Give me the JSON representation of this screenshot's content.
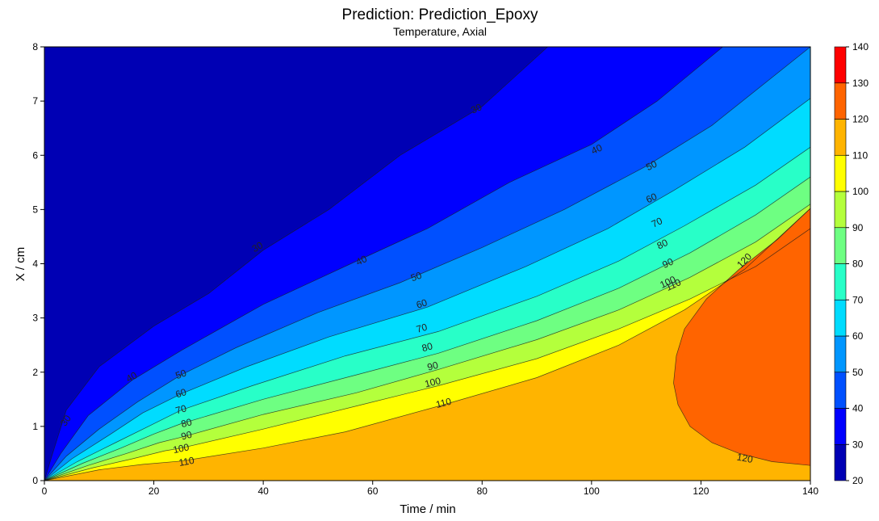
{
  "chart_data": {
    "type": "contour",
    "title": "Prediction: Prediction_Epoxy",
    "subtitle": "Temperature, Axial",
    "xlabel": "Time / min",
    "ylabel": "X / cm",
    "xlim": [
      0,
      140
    ],
    "ylim": [
      0,
      8
    ],
    "x_ticks": [
      "0",
      "20",
      "40",
      "60",
      "80",
      "100",
      "120",
      "140"
    ],
    "y_ticks": [
      "0",
      "1",
      "2",
      "3",
      "4",
      "5",
      "6",
      "7",
      "8"
    ],
    "colorbar": {
      "levels": [
        20,
        30,
        40,
        50,
        60,
        70,
        80,
        90,
        100,
        110,
        120,
        130,
        140
      ],
      "labels": [
        "20",
        "30",
        "40",
        "50",
        "60",
        "70",
        "80",
        "90",
        "100",
        "110",
        "120",
        "130",
        "140"
      ],
      "colors": [
        "#0000b4",
        "#0000ff",
        "#0050ff",
        "#0096ff",
        "#00dcff",
        "#28ffc8",
        "#6eff82",
        "#b4ff3c",
        "#ffff00",
        "#ffb400",
        "#ff6400",
        "#ff0000"
      ]
    },
    "contours": [
      {
        "level": 30,
        "points": [
          [
            0,
            0
          ],
          [
            1.5,
            0.5
          ],
          [
            4,
            1.3
          ],
          [
            10,
            2.1
          ],
          [
            20,
            2.85
          ],
          [
            30,
            3.45
          ],
          [
            40,
            4.25
          ],
          [
            52,
            5.0
          ],
          [
            65,
            6.0
          ],
          [
            80,
            6.9
          ],
          [
            92,
            8.0
          ]
        ]
      },
      {
        "level": 40,
        "points": [
          [
            0,
            0
          ],
          [
            3,
            0.5
          ],
          [
            8,
            1.2
          ],
          [
            16,
            1.85
          ],
          [
            25,
            2.4
          ],
          [
            40,
            3.25
          ],
          [
            56,
            4.0
          ],
          [
            70,
            4.65
          ],
          [
            85,
            5.5
          ],
          [
            100,
            6.2
          ],
          [
            112,
            7.0
          ],
          [
            124,
            8.0
          ]
        ]
      },
      {
        "level": 50,
        "points": [
          [
            0,
            0
          ],
          [
            4,
            0.45
          ],
          [
            10,
            0.95
          ],
          [
            17,
            1.45
          ],
          [
            25,
            1.95
          ],
          [
            35,
            2.45
          ],
          [
            50,
            3.1
          ],
          [
            65,
            3.65
          ],
          [
            80,
            4.3
          ],
          [
            95,
            5.0
          ],
          [
            110,
            5.8
          ],
          [
            122,
            6.55
          ],
          [
            140,
            8.0
          ]
        ]
      },
      {
        "level": 60,
        "points": [
          [
            0,
            0
          ],
          [
            5,
            0.4
          ],
          [
            12,
            0.85
          ],
          [
            18,
            1.25
          ],
          [
            25,
            1.6
          ],
          [
            37,
            2.1
          ],
          [
            52,
            2.65
          ],
          [
            70,
            3.2
          ],
          [
            88,
            3.95
          ],
          [
            103,
            4.65
          ],
          [
            115,
            5.35
          ],
          [
            128,
            6.15
          ],
          [
            140,
            7.05
          ]
        ]
      },
      {
        "level": 70,
        "points": [
          [
            0,
            0
          ],
          [
            6,
            0.35
          ],
          [
            13,
            0.7
          ],
          [
            19,
            1.0
          ],
          [
            25,
            1.3
          ],
          [
            38,
            1.75
          ],
          [
            55,
            2.3
          ],
          [
            72,
            2.75
          ],
          [
            90,
            3.4
          ],
          [
            105,
            4.05
          ],
          [
            117,
            4.7
          ],
          [
            130,
            5.45
          ],
          [
            140,
            6.15
          ]
        ]
      },
      {
        "level": 80,
        "points": [
          [
            0,
            0
          ],
          [
            7,
            0.32
          ],
          [
            14,
            0.6
          ],
          [
            20,
            0.86
          ],
          [
            25,
            1.05
          ],
          [
            40,
            1.5
          ],
          [
            57,
            1.95
          ],
          [
            72,
            2.35
          ],
          [
            90,
            2.95
          ],
          [
            105,
            3.55
          ],
          [
            118,
            4.2
          ],
          [
            130,
            4.9
          ],
          [
            140,
            5.6
          ]
        ]
      },
      {
        "level": 90,
        "points": [
          [
            0,
            0
          ],
          [
            8,
            0.28
          ],
          [
            15,
            0.5
          ],
          [
            21,
            0.7
          ],
          [
            25,
            0.8
          ],
          [
            40,
            1.22
          ],
          [
            57,
            1.62
          ],
          [
            72,
            2.05
          ],
          [
            90,
            2.6
          ],
          [
            105,
            3.15
          ],
          [
            118,
            3.75
          ],
          [
            130,
            4.4
          ],
          [
            140,
            5.1
          ]
        ]
      },
      {
        "level": 100,
        "points": [
          [
            0,
            0
          ],
          [
            9,
            0.24
          ],
          [
            16,
            0.4
          ],
          [
            22,
            0.55
          ],
          [
            25,
            0.6
          ],
          [
            40,
            0.95
          ],
          [
            58,
            1.4
          ],
          [
            72,
            1.75
          ],
          [
            90,
            2.25
          ],
          [
            105,
            2.8
          ],
          [
            118,
            3.35
          ],
          [
            130,
            3.95
          ],
          [
            140,
            4.65
          ]
        ]
      },
      {
        "level": 110,
        "points": [
          [
            0,
            0
          ],
          [
            10,
            0.2
          ],
          [
            18,
            0.3
          ],
          [
            25,
            0.36
          ],
          [
            40,
            0.6
          ],
          [
            55,
            0.9
          ],
          [
            73,
            1.4
          ],
          [
            90,
            1.9
          ],
          [
            105,
            2.5
          ],
          [
            117,
            3.15
          ],
          [
            128,
            3.9
          ],
          [
            140,
            5.02
          ]
        ]
      },
      {
        "level": 120,
        "points": [
          [
            140,
            5.02
          ],
          [
            134,
            4.45
          ],
          [
            127,
            3.9
          ],
          [
            121,
            3.35
          ],
          [
            117,
            2.8
          ],
          [
            115.5,
            2.3
          ],
          [
            115,
            1.8
          ],
          [
            115.8,
            1.4
          ],
          [
            118,
            1.0
          ],
          [
            122,
            0.7
          ],
          [
            127,
            0.5
          ],
          [
            133,
            0.35
          ],
          [
            140,
            0.28
          ]
        ]
      }
    ],
    "contour_labels": [
      {
        "text": "30",
        "x": 4,
        "y": 1.1,
        "angle": -55
      },
      {
        "text": "30",
        "x": 39,
        "y": 4.3,
        "angle": -30
      },
      {
        "text": "30",
        "x": 79,
        "y": 6.85,
        "angle": -25
      },
      {
        "text": "40",
        "x": 16,
        "y": 1.9,
        "angle": -30
      },
      {
        "text": "40",
        "x": 58,
        "y": 4.05,
        "angle": -25
      },
      {
        "text": "40",
        "x": 101,
        "y": 6.1,
        "angle": -25
      },
      {
        "text": "50",
        "x": 25,
        "y": 1.95,
        "angle": -20
      },
      {
        "text": "50",
        "x": 68,
        "y": 3.75,
        "angle": -20
      },
      {
        "text": "50",
        "x": 111,
        "y": 5.8,
        "angle": -25
      },
      {
        "text": "60",
        "x": 25,
        "y": 1.6,
        "angle": -18
      },
      {
        "text": "60",
        "x": 69,
        "y": 3.25,
        "angle": -18
      },
      {
        "text": "60",
        "x": 111,
        "y": 5.2,
        "angle": -25
      },
      {
        "text": "70",
        "x": 25,
        "y": 1.3,
        "angle": -16
      },
      {
        "text": "70",
        "x": 69,
        "y": 2.8,
        "angle": -16
      },
      {
        "text": "70",
        "x": 112,
        "y": 4.75,
        "angle": -25
      },
      {
        "text": "80",
        "x": 26,
        "y": 1.05,
        "angle": -15
      },
      {
        "text": "80",
        "x": 70,
        "y": 2.45,
        "angle": -15
      },
      {
        "text": "80",
        "x": 113,
        "y": 4.35,
        "angle": -25
      },
      {
        "text": "90",
        "x": 26,
        "y": 0.82,
        "angle": -14
      },
      {
        "text": "90",
        "x": 71,
        "y": 2.1,
        "angle": -15
      },
      {
        "text": "90",
        "x": 114,
        "y": 4.0,
        "angle": -25
      },
      {
        "text": "100",
        "x": 25,
        "y": 0.58,
        "angle": -12
      },
      {
        "text": "100",
        "x": 71,
        "y": 1.8,
        "angle": -14
      },
      {
        "text": "100",
        "x": 114,
        "y": 3.65,
        "angle": -25
      },
      {
        "text": "110",
        "x": 26,
        "y": 0.34,
        "angle": -10
      },
      {
        "text": "110",
        "x": 73,
        "y": 1.42,
        "angle": -14
      },
      {
        "text": "110",
        "x": 115,
        "y": 3.6,
        "angle": -25
      },
      {
        "text": "120",
        "x": 128,
        "y": 4.05,
        "angle": -45
      },
      {
        "text": "120",
        "x": 128,
        "y": 0.4,
        "angle": 10
      }
    ]
  }
}
